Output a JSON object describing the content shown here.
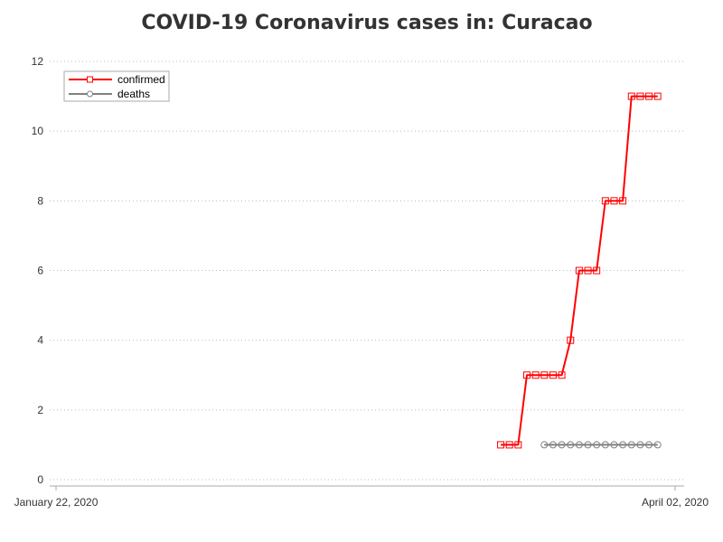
{
  "chart_data": {
    "type": "line",
    "title": "COVID-19 Coronavirus cases in: Curacao",
    "xlabel": "",
    "ylabel": "",
    "x_tick_labels": [
      "January 22, 2020",
      "April 02, 2020"
    ],
    "x_range": [
      "2020-01-22",
      "2020-04-02"
    ],
    "ylim": [
      0,
      12
    ],
    "y_ticks": [
      0,
      2,
      4,
      6,
      8,
      10,
      12
    ],
    "grid": "horizontal dotted",
    "legend_position": "top-left",
    "series": [
      {
        "name": "confirmed",
        "color": "#ff0000",
        "marker": "square",
        "points": [
          [
            "2020-03-13",
            1
          ],
          [
            "2020-03-14",
            1
          ],
          [
            "2020-03-15",
            1
          ],
          [
            "2020-03-16",
            3
          ],
          [
            "2020-03-17",
            3
          ],
          [
            "2020-03-18",
            3
          ],
          [
            "2020-03-19",
            3
          ],
          [
            "2020-03-20",
            3
          ],
          [
            "2020-03-21",
            4
          ],
          [
            "2020-03-22",
            6
          ],
          [
            "2020-03-23",
            6
          ],
          [
            "2020-03-24",
            6
          ],
          [
            "2020-03-25",
            8
          ],
          [
            "2020-03-26",
            8
          ],
          [
            "2020-03-27",
            8
          ],
          [
            "2020-03-28",
            11
          ],
          [
            "2020-03-29",
            11
          ],
          [
            "2020-03-30",
            11
          ],
          [
            "2020-03-31",
            11
          ]
        ]
      },
      {
        "name": "deaths",
        "color": "#808080",
        "marker": "circle",
        "points": [
          [
            "2020-03-18",
            1
          ],
          [
            "2020-03-19",
            1
          ],
          [
            "2020-03-20",
            1
          ],
          [
            "2020-03-21",
            1
          ],
          [
            "2020-03-22",
            1
          ],
          [
            "2020-03-23",
            1
          ],
          [
            "2020-03-24",
            1
          ],
          [
            "2020-03-25",
            1
          ],
          [
            "2020-03-26",
            1
          ],
          [
            "2020-03-27",
            1
          ],
          [
            "2020-03-28",
            1
          ],
          [
            "2020-03-29",
            1
          ],
          [
            "2020-03-30",
            1
          ],
          [
            "2020-03-31",
            1
          ]
        ]
      }
    ]
  }
}
